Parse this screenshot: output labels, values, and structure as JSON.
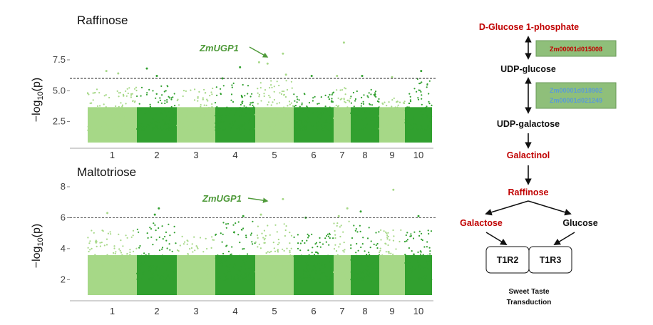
{
  "colors": {
    "light_green": "#a6d887",
    "dark_green": "#31a02f",
    "annotation_green": "#4f9a3a",
    "pathway_red": "#c00000",
    "gene_box_fill": "#8fbf7a",
    "gene_red": "#c00000",
    "gene_blue": "#5b9bd5"
  },
  "chart_data": [
    {
      "type": "scatter",
      "subtype": "manhattan",
      "title": "Raffinose",
      "ylabel": "−log10(p)",
      "ylabel_main": "−log",
      "ylabel_sub": "10",
      "ylabel_tail": "(p)",
      "ylim": [
        0.8,
        9.0
      ],
      "yticks": [
        2.5,
        5.0,
        7.5
      ],
      "ytick_labels": [
        "2.5",
        "5.0",
        "7.5"
      ],
      "threshold": 6.0,
      "threshold_style": "dashed",
      "chromosomes": [
        "1",
        "2",
        "3",
        "4",
        "5",
        "6",
        "7",
        "8",
        "9",
        "10"
      ],
      "chromosome_colors": [
        "light",
        "dark",
        "light",
        "dark",
        "light",
        "dark",
        "light",
        "dark",
        "light",
        "dark"
      ],
      "annotation": {
        "label": "ZmUGP1",
        "chromosome": "5",
        "value": 7.5
      },
      "background_max_by_chr": [
        5.3,
        5.6,
        5.2,
        5.7,
        5.9,
        4.9,
        5.3,
        5.2,
        4.5,
        6.0
      ],
      "peaks": [
        {
          "chr": "1",
          "pos": 0.38,
          "value": 6.6
        },
        {
          "chr": "1",
          "pos": 0.62,
          "value": 6.4
        },
        {
          "chr": "2",
          "pos": 0.25,
          "value": 6.8
        },
        {
          "chr": "2",
          "pos": 0.5,
          "value": 6.2
        },
        {
          "chr": "4",
          "pos": 0.62,
          "value": 6.9
        },
        {
          "chr": "4",
          "pos": 0.18,
          "value": 6.0
        },
        {
          "chr": "5",
          "pos": 0.1,
          "value": 7.3
        },
        {
          "chr": "5",
          "pos": 0.32,
          "value": 7.2
        },
        {
          "chr": "5",
          "pos": 0.72,
          "value": 8.0
        },
        {
          "chr": "5",
          "pos": 0.8,
          "value": 6.3
        },
        {
          "chr": "6",
          "pos": 0.45,
          "value": 6.2
        },
        {
          "chr": "7",
          "pos": 0.6,
          "value": 8.9
        },
        {
          "chr": "7",
          "pos": 0.2,
          "value": 6.2
        },
        {
          "chr": "8",
          "pos": 0.4,
          "value": 6.2
        },
        {
          "chr": "9",
          "pos": 0.5,
          "value": 6.1
        },
        {
          "chr": "10",
          "pos": 0.6,
          "value": 6.6
        }
      ]
    },
    {
      "type": "scatter",
      "subtype": "manhattan",
      "title": "Maltotriose",
      "ylabel": "−log10(p)",
      "ylabel_main": "−log",
      "ylabel_sub": "10",
      "ylabel_tail": "(p)",
      "ylim": [
        1.0,
        8.0
      ],
      "yticks": [
        2,
        4,
        6,
        8
      ],
      "ytick_labels": [
        "2",
        "4",
        "6",
        "8"
      ],
      "threshold": 6.0,
      "threshold_style": "dashed",
      "chromosomes": [
        "1",
        "2",
        "3",
        "4",
        "5",
        "6",
        "7",
        "8",
        "9",
        "10"
      ],
      "chromosome_colors": [
        "light",
        "dark",
        "light",
        "dark",
        "light",
        "dark",
        "light",
        "dark",
        "light",
        "dark"
      ],
      "annotation": {
        "label": "ZmUGP1",
        "chromosome": "5",
        "value": 7.2
      },
      "background_max_by_chr": [
        5.2,
        5.7,
        4.8,
        5.9,
        5.6,
        5.0,
        5.9,
        5.5,
        5.2,
        5.3
      ],
      "peaks": [
        {
          "chr": "1",
          "pos": 0.4,
          "value": 6.3
        },
        {
          "chr": "2",
          "pos": 0.55,
          "value": 6.6
        },
        {
          "chr": "2",
          "pos": 0.45,
          "value": 6.2
        },
        {
          "chr": "4",
          "pos": 0.7,
          "value": 6.1
        },
        {
          "chr": "5",
          "pos": 0.72,
          "value": 7.2
        },
        {
          "chr": "5",
          "pos": 0.15,
          "value": 6.2
        },
        {
          "chr": "6",
          "pos": 0.3,
          "value": 6.0
        },
        {
          "chr": "7",
          "pos": 0.8,
          "value": 6.6
        },
        {
          "chr": "7",
          "pos": 0.3,
          "value": 6.1
        },
        {
          "chr": "8",
          "pos": 0.35,
          "value": 6.4
        },
        {
          "chr": "9",
          "pos": 0.55,
          "value": 7.8
        },
        {
          "chr": "10",
          "pos": 0.5,
          "value": 6.1
        }
      ]
    }
  ],
  "pathway": {
    "nodes": {
      "glucose_1p": "D-Glucose 1-phosphate",
      "udp_glucose": "UDP-glucose",
      "udp_galactose": "UDP-galactose",
      "galactinol": "Galactinol",
      "raffinose": "Raffinose",
      "galactose": "Galactose",
      "glucose": "Glucose"
    },
    "genes": {
      "box1": [
        "Zm00001d015008"
      ],
      "box2": [
        "Zm00001d018902",
        "Zm00001d021249"
      ]
    },
    "receptors": [
      "T1R2",
      "T1R3"
    ],
    "caption_lines": [
      "Sweet Taste",
      "Transduction"
    ]
  }
}
